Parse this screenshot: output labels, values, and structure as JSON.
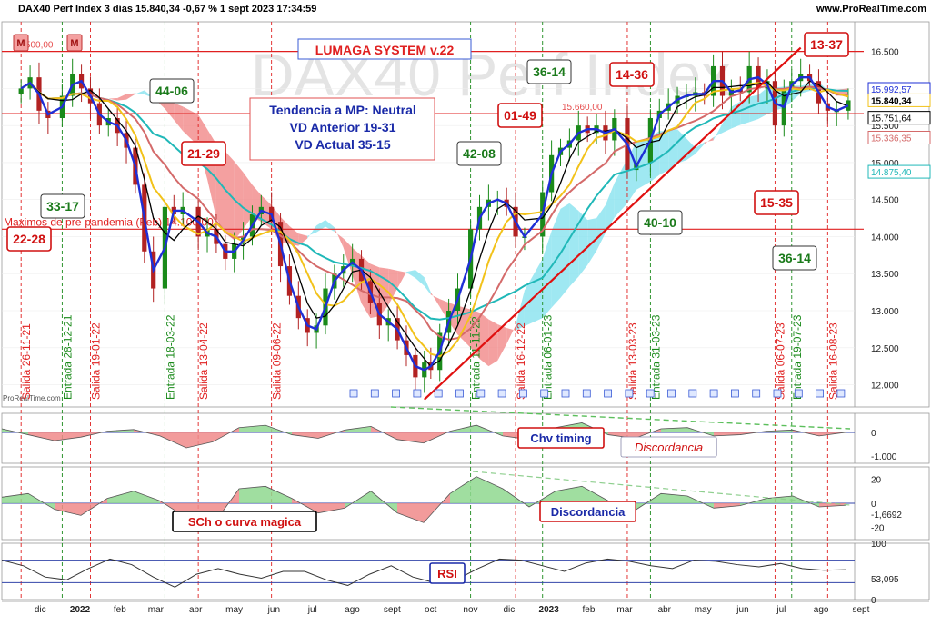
{
  "header": {
    "title": "DAX40 Perf Index 3 días 15.840,34 -0,67 % 1 sept 2023 17:34:59",
    "site": "www.ProRealTime.com",
    "watermark": "DAX40 Perf Index",
    "credit": "ProRealTime.com"
  },
  "colors": {
    "price_up": "#1a8a1a",
    "price_down": "#b22222",
    "sma_fast": "#1f2fd6",
    "tenkan": "#000000",
    "sma_mid": "#f2c21a",
    "sma_slow": "#d46a6a",
    "sma_long": "#20b8b8",
    "cloud_bull": "#7fe0ee",
    "cloud_bear": "#f08080",
    "exit_line": "#e02020",
    "entry_line": "#1a8a1a"
  },
  "chart_data": [
    {
      "type": "candlestick",
      "title": "DAX40 Perf Index 3 días",
      "x_ticks": [
        "dic",
        "2022",
        "feb",
        "mar",
        "abr",
        "may",
        "jun",
        "jul",
        "ago",
        "sept",
        "oct",
        "nov",
        "dic",
        "2023",
        "feb",
        "mar",
        "abr",
        "may",
        "jun",
        "jul",
        "ago",
        "sept"
      ],
      "y_ticks": [
        12000,
        12500,
        13000,
        13500,
        14000,
        14500,
        15000,
        15500,
        16000,
        16500
      ],
      "y_tick_labels": [
        "12.000",
        "12.500",
        "13.000",
        "13.500",
        "14.000",
        "14.500",
        "15.000",
        "15.500",
        "16.000",
        "16.500"
      ],
      "ylim": [
        11700,
        16900
      ],
      "close_series": [
        [
          "2021-11-26",
          16000
        ],
        [
          "2021-12-03",
          16150
        ],
        [
          "2021-12-10",
          15700
        ],
        [
          "2021-12-17",
          15600
        ],
        [
          "2021-12-28",
          15900
        ],
        [
          "2022-01-05",
          16200
        ],
        [
          "2022-01-12",
          16000
        ],
        [
          "2022-01-19",
          15800
        ],
        [
          "2022-01-26",
          15500
        ],
        [
          "2022-02-02",
          15600
        ],
        [
          "2022-02-09",
          15400
        ],
        [
          "2022-02-16",
          15200
        ],
        [
          "2022-02-23",
          14700
        ],
        [
          "2022-03-02",
          13800
        ],
        [
          "2022-03-09",
          13300
        ],
        [
          "2022-03-18",
          14400
        ],
        [
          "2022-03-25",
          14300
        ],
        [
          "2022-04-01",
          14400
        ],
        [
          "2022-04-13",
          14000
        ],
        [
          "2022-04-20",
          14100
        ],
        [
          "2022-04-27",
          13900
        ],
        [
          "2022-05-04",
          13700
        ],
        [
          "2022-05-11",
          13900
        ],
        [
          "2022-05-18",
          14000
        ],
        [
          "2022-05-25",
          14300
        ],
        [
          "2022-06-01",
          14400
        ],
        [
          "2022-06-09",
          14200
        ],
        [
          "2022-06-16",
          13600
        ],
        [
          "2022-06-23",
          13200
        ],
        [
          "2022-06-30",
          12900
        ],
        [
          "2022-07-07",
          12700
        ],
        [
          "2022-07-14",
          12800
        ],
        [
          "2022-07-21",
          13300
        ],
        [
          "2022-07-28",
          13500
        ],
        [
          "2022-08-04",
          13600
        ],
        [
          "2022-08-11",
          13700
        ],
        [
          "2022-08-18",
          13400
        ],
        [
          "2022-08-25",
          13100
        ],
        [
          "2022-09-01",
          12800
        ],
        [
          "2022-09-08",
          12900
        ],
        [
          "2022-09-15",
          12600
        ],
        [
          "2022-09-22",
          12400
        ],
        [
          "2022-09-29",
          12100
        ],
        [
          "2022-10-06",
          12300
        ],
        [
          "2022-10-11",
          12200
        ],
        [
          "2022-10-18",
          12700
        ],
        [
          "2022-10-25",
          13000
        ],
        [
          "2022-11-01",
          13300
        ],
        [
          "2022-11-11",
          14100
        ],
        [
          "2022-11-18",
          14400
        ],
        [
          "2022-11-25",
          14500
        ],
        [
          "2022-12-02",
          14500
        ],
        [
          "2022-12-09",
          14400
        ],
        [
          "2022-12-16",
          14000
        ],
        [
          "2022-12-23",
          14000
        ],
        [
          "2023-01-06",
          14600
        ],
        [
          "2023-01-13",
          15100
        ],
        [
          "2023-01-20",
          15200
        ],
        [
          "2023-01-27",
          15300
        ],
        [
          "2023-02-03",
          15500
        ],
        [
          "2023-02-10",
          15400
        ],
        [
          "2023-02-17",
          15500
        ],
        [
          "2023-02-24",
          15300
        ],
        [
          "2023-03-03",
          15600
        ],
        [
          "2023-03-13",
          14900
        ],
        [
          "2023-03-20",
          15000
        ],
        [
          "2023-03-31",
          15600
        ],
        [
          "2023-04-07",
          15700
        ],
        [
          "2023-04-14",
          15800
        ],
        [
          "2023-04-21",
          15900
        ],
        [
          "2023-04-28",
          15900
        ],
        [
          "2023-05-05",
          15950
        ],
        [
          "2023-05-12",
          15900
        ],
        [
          "2023-05-19",
          16300
        ],
        [
          "2023-05-26",
          15900
        ],
        [
          "2023-06-02",
          16000
        ],
        [
          "2023-06-09",
          15950
        ],
        [
          "2023-06-16",
          16300
        ],
        [
          "2023-06-23",
          16000
        ],
        [
          "2023-06-30",
          16100
        ],
        [
          "2023-07-06",
          15500
        ],
        [
          "2023-07-13",
          16000
        ],
        [
          "2023-07-19",
          16100
        ],
        [
          "2023-07-26",
          16200
        ],
        [
          "2023-08-02",
          16100
        ],
        [
          "2023-08-09",
          15800
        ],
        [
          "2023-08-16",
          15700
        ],
        [
          "2023-08-23",
          15700
        ],
        [
          "2023-09-01",
          15840
        ]
      ],
      "price_markers": [
        {
          "label": "15.992,57",
          "value": 15992.57,
          "color": "#1f2fd6"
        },
        {
          "label": "15.840,34",
          "value": 15840.34,
          "color": "#f2c21a"
        },
        {
          "label": "15.751,64",
          "value": 15751.64,
          "color": "#000000"
        },
        {
          "label": "15.336,35",
          "value": 15336.35,
          "color": "#d46a6a"
        },
        {
          "label": "14.875,40",
          "value": 14875.4,
          "color": "#20b8b8"
        }
      ],
      "horizontal_levels": [
        {
          "value": 16500,
          "label": "16.500,00"
        },
        {
          "value": 15660,
          "label": "15.660,00"
        },
        {
          "value": 14100,
          "label": "Maximos de pre-pandemia (Feb) 14.100,00"
        }
      ],
      "vertical_signals": [
        {
          "date": "2021-11-26",
          "label": "Salida 26-11-21",
          "kind": "exit"
        },
        {
          "date": "2021-12-28",
          "label": "Entrada 28-12-21",
          "kind": "entry"
        },
        {
          "date": "2022-01-19",
          "label": "Salida 19-01-22",
          "kind": "exit"
        },
        {
          "date": "2022-03-18",
          "label": "Entrada 18-03-22",
          "kind": "entry"
        },
        {
          "date": "2022-04-13",
          "label": "Salida 13-04-22",
          "kind": "exit"
        },
        {
          "date": "2022-06-09",
          "label": "Salida 09-06-22",
          "kind": "exit"
        },
        {
          "date": "2022-11-11",
          "label": "Entrada 11-11-22",
          "kind": "entry"
        },
        {
          "date": "2022-12-16",
          "label": "Salida 16-12-22",
          "kind": "exit"
        },
        {
          "date": "2023-01-06",
          "label": "Entrada 06-01-23",
          "kind": "entry"
        },
        {
          "date": "2023-03-13",
          "label": "Salida 13-03-23",
          "kind": "exit"
        },
        {
          "date": "2023-03-31",
          "label": "Entrada 31-03-23",
          "kind": "entry"
        },
        {
          "date": "2023-07-06",
          "label": "Salida 06-07-23",
          "kind": "exit"
        },
        {
          "date": "2023-07-19",
          "label": "Entrada 19-07-23",
          "kind": "entry"
        },
        {
          "date": "2023-08-16",
          "label": "Salida 16-08-23",
          "kind": "exit"
        }
      ],
      "trendline": [
        [
          "2022-10-06",
          11800
        ],
        [
          "2023-07-26",
          16550
        ]
      ],
      "annotations": [
        {
          "text": "LUMAGA SYSTEM v.22",
          "style": "red-boxed"
        },
        {
          "text": "Tendencia a MP: Neutral",
          "style": "blue-bold"
        },
        {
          "text": "VD Anterior 19-31",
          "style": "blue-bold"
        },
        {
          "text": "VD Actual 35-15",
          "style": "blue-bold"
        },
        {
          "text": "44-06",
          "style": "green-box"
        },
        {
          "text": "21-29",
          "style": "red-box"
        },
        {
          "text": "33-17",
          "style": "green-box"
        },
        {
          "text": "22-28",
          "style": "red-box"
        },
        {
          "text": "42-08",
          "style": "green-box"
        },
        {
          "text": "01-49",
          "style": "red-box"
        },
        {
          "text": "36-14",
          "style": "green-box"
        },
        {
          "text": "14-36",
          "style": "red-box"
        },
        {
          "text": "40-10",
          "style": "green-box"
        },
        {
          "text": "15-35",
          "style": "red-box"
        },
        {
          "text": "36-14",
          "style": "green-box"
        },
        {
          "text": "13-37",
          "style": "red-box"
        }
      ],
      "badges": [
        "M",
        "M"
      ]
    },
    {
      "type": "area",
      "title": "Chv timing",
      "annotation": "Discordancia",
      "y_ticks": [
        0,
        -1000
      ],
      "y_tick_labels": [
        "0",
        "-1.000"
      ],
      "ylim": [
        -1300,
        800
      ],
      "series": [
        {
          "values": [
            150,
            -100,
            -350,
            -200,
            50,
            120,
            -150,
            -650,
            -400,
            200,
            300,
            -100,
            -250,
            100,
            250,
            -300,
            -450,
            50,
            300,
            -150,
            -300,
            200,
            400,
            -100,
            -250,
            150,
            200,
            -150,
            -100,
            50,
            100,
            -150,
            0
          ]
        }
      ]
    },
    {
      "type": "area",
      "title": "SCh o curva magica",
      "annotation": "Discordancia",
      "y_ticks": [
        20,
        0,
        -20
      ],
      "y_tick_labels": [
        "20",
        "0",
        "-20"
      ],
      "current_value_label": "-1,6692",
      "ylim": [
        -30,
        30
      ],
      "series": [
        {
          "values": [
            5,
            8,
            -5,
            -10,
            4,
            10,
            2,
            -12,
            -18,
            12,
            14,
            4,
            -8,
            -4,
            10,
            -8,
            -16,
            8,
            22,
            12,
            -3,
            10,
            14,
            2,
            -6,
            8,
            6,
            -4,
            -2,
            4,
            6,
            -3,
            -1.67
          ]
        }
      ]
    },
    {
      "type": "line",
      "title": "RSI",
      "y_ticks": [
        100,
        0
      ],
      "y_tick_labels": [
        "100",
        "0"
      ],
      "current_value_label": "53,095",
      "ylim": [
        0,
        100
      ],
      "bands": [
        70,
        30
      ],
      "series": [
        {
          "values": [
            70,
            60,
            40,
            35,
            55,
            72,
            62,
            40,
            22,
            45,
            55,
            45,
            38,
            50,
            50,
            35,
            25,
            45,
            60,
            40,
            30,
            35,
            55,
            72,
            70,
            60,
            50,
            65,
            72,
            68,
            60,
            55,
            70,
            68,
            62,
            58,
            64,
            55,
            52,
            53
          ]
        }
      ]
    }
  ]
}
